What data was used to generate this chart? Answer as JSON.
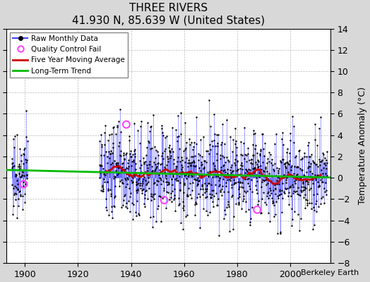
{
  "title": "THREE RIVERS",
  "subtitle": "41.930 N, 85.639 W (United States)",
  "ylabel_right": "Temperature Anomaly (°C)",
  "attribution": "Berkeley Earth",
  "ylim": [
    -8,
    14
  ],
  "xlim": [
    1893,
    2015
  ],
  "yticks": [
    -8,
    -6,
    -4,
    -2,
    0,
    2,
    4,
    6,
    8,
    10,
    12,
    14
  ],
  "xticks": [
    1900,
    1920,
    1940,
    1960,
    1980,
    2000
  ],
  "fig_bg_color": "#d8d8d8",
  "plot_bg_color": "#ffffff",
  "raw_color": "#4444ff",
  "raw_marker_color": "#000000",
  "qc_fail_color": "#ff44ff",
  "moving_avg_color": "#cc0000",
  "trend_color": "#00bb00",
  "seed": 77,
  "data_start": 1895,
  "data_end": 2013,
  "sparse_end": 1921,
  "dense_start": 1928
}
